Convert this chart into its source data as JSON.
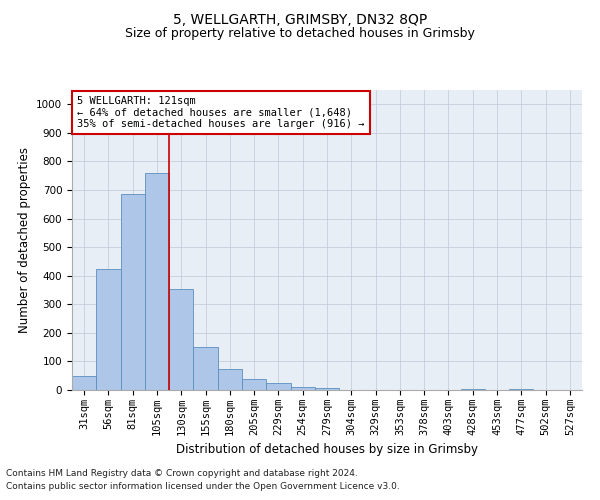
{
  "title1": "5, WELLGARTH, GRIMSBY, DN32 8QP",
  "title2": "Size of property relative to detached houses in Grimsby",
  "xlabel": "Distribution of detached houses by size in Grimsby",
  "ylabel": "Number of detached properties",
  "footnote1": "Contains HM Land Registry data © Crown copyright and database right 2024.",
  "footnote2": "Contains public sector information licensed under the Open Government Licence v3.0.",
  "annotation_line1": "5 WELLGARTH: 121sqm",
  "annotation_line2": "← 64% of detached houses are smaller (1,648)",
  "annotation_line3": "35% of semi-detached houses are larger (916) →",
  "bar_labels": [
    "31sqm",
    "56sqm",
    "81sqm",
    "105sqm",
    "130sqm",
    "155sqm",
    "180sqm",
    "205sqm",
    "229sqm",
    "254sqm",
    "279sqm",
    "304sqm",
    "329sqm",
    "353sqm",
    "378sqm",
    "403sqm",
    "428sqm",
    "453sqm",
    "477sqm",
    "502sqm",
    "527sqm"
  ],
  "bar_values": [
    50,
    425,
    685,
    760,
    355,
    150,
    75,
    37,
    25,
    12,
    8,
    0,
    0,
    0,
    0,
    0,
    5,
    0,
    5,
    0,
    0
  ],
  "bar_color": "#aec6e8",
  "bar_edge_color": "#5a8fc0",
  "vline_x": 3.5,
  "vline_color": "#cc0000",
  "annotation_box_color": "#ffffff",
  "annotation_box_edge": "#cc0000",
  "background_color": "#e8eef5",
  "ylim": [
    0,
    1050
  ],
  "yticks": [
    0,
    100,
    200,
    300,
    400,
    500,
    600,
    700,
    800,
    900,
    1000
  ],
  "grid_color": "#c0c8d8",
  "title1_fontsize": 10,
  "title2_fontsize": 9,
  "xlabel_fontsize": 8.5,
  "ylabel_fontsize": 8.5,
  "tick_fontsize": 7.5,
  "annotation_fontsize": 7.5,
  "footnote_fontsize": 6.5
}
